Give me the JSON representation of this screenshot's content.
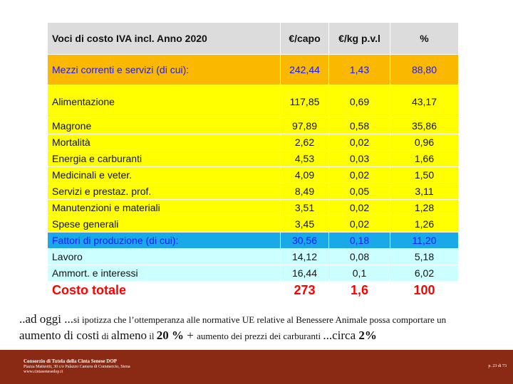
{
  "table": {
    "header": {
      "label": "Voci di costo IVA incl.   Anno 2020",
      "col1": "€/capo",
      "col2": "€/kg p.v.l",
      "col3": "%"
    },
    "rows": [
      {
        "label": "Mezzi correnti e servizi (di cui):",
        "capo": "242,44",
        "kg": "1,43",
        "pct": "88,80"
      },
      {
        "label": "Alimentazione",
        "capo": "117,85",
        "kg": "0,69",
        "pct": "43,17"
      },
      {
        "label": "Magrone",
        "capo": "97,89",
        "kg": "0,58",
        "pct": "35,86"
      },
      {
        "label": "Mortalità",
        "capo": "2,62",
        "kg": "0,02",
        "pct": "0,96"
      },
      {
        "label": "Energia e carburanti",
        "capo": "4,53",
        "kg": "0,03",
        "pct": "1,66"
      },
      {
        "label": "Medicinali e veter.",
        "capo": "4,09",
        "kg": "0,02",
        "pct": "1,50"
      },
      {
        "label": "Servizi e prestaz. prof.",
        "capo": "8,49",
        "kg": "0,05",
        "pct": "3,11"
      },
      {
        "label": "Manutenzioni e materiali",
        "capo": "3,51",
        "kg": "0,02",
        "pct": "1,28"
      },
      {
        "label": "Spese generali",
        "capo": "3,45",
        "kg": "0,02",
        "pct": "1,26"
      },
      {
        "label": "Fattori di produzione (di cui):",
        "capo": "30,56",
        "kg": "0,18",
        "pct": "11,20"
      },
      {
        "label": "Lavoro",
        "capo": "14,12",
        "kg": "0,08",
        "pct": "5,18"
      },
      {
        "label": "Ammort. e interessi",
        "capo": "16,44",
        "kg": "0,1",
        "pct": "6,02"
      },
      {
        "label": "Costo totale",
        "capo": "273",
        "kg": "1,6",
        "pct": "100"
      }
    ],
    "colors": {
      "header": "#dcdcdc",
      "orange": "#fbb800",
      "yellow": "#ffff00",
      "blue": "#1aa9e8",
      "cyan": "#ccffff",
      "total_text": "#ff0000",
      "section_text": "#1a1aff"
    }
  },
  "note": {
    "part1": "..ad oggi ",
    "part2": "...",
    "part3": "si ipotizza che l’ottemperanza alle normative UE relative al Benessere Animale possa comportare un",
    "part4": "aumento di costi",
    "part5": " di ",
    "part6": "almeno",
    "part7": " il ",
    "part8": "20  %",
    "part9": "   +  ",
    "part10": "aumento dei prezzi dei carburanti ",
    "part11": "...circa ",
    "part12": "2%"
  },
  "footer": {
    "org": "Consorzio di Tutela della Cinta Senese DOP",
    "address": "Piazza Matteotti, 30 c/o Palazzo Camera di Commercio, Siena",
    "web": "www.cintasenesedop.it",
    "page": "p. 23 di 73",
    "background": "#8a2a14"
  }
}
